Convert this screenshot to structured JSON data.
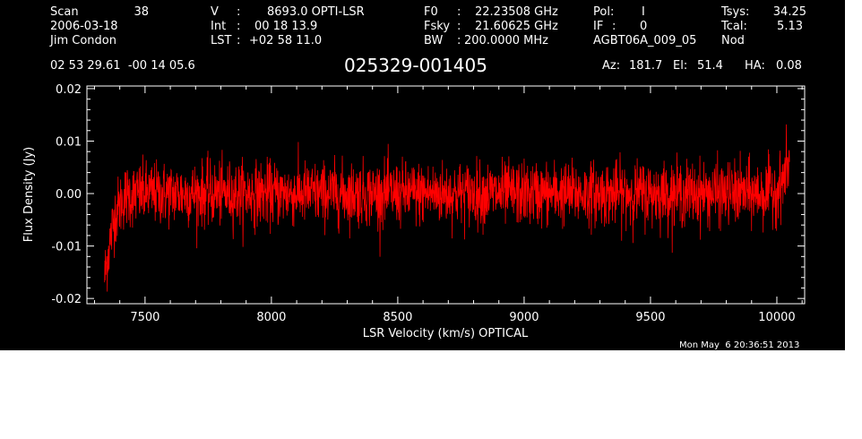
{
  "header": {
    "row1": [
      "Scan",
      "38",
      "V",
      ":",
      "8693.0 OPTI-LSR",
      "F0",
      ":",
      "22.23508 GHz",
      "Pol:",
      "I",
      "Tsys:",
      "34.25"
    ],
    "row2": [
      "2006-03-18",
      "Int",
      ":",
      "00 18 13.9",
      "Fsky",
      ":",
      "21.60625 GHz",
      "IF",
      ":",
      "0",
      "Tcal:",
      "5.13"
    ],
    "row3": [
      "Jim Condon",
      "LST",
      ":",
      "+02 58 11.0",
      "BW",
      ":",
      "200.0000 MHz",
      "AGBT06A_009_05",
      "Nod"
    ],
    "coords": "02 53 29.61  -00 14 05.6",
    "source": "025329-001405",
    "az_label": "Az:",
    "az_value": "181.7",
    "el_label": "El:",
    "el_value": "51.4",
    "ha_label": "HA:",
    "ha_value": "0.08"
  },
  "footer": {
    "timestamp": "Mon May  6 20:36:51 2013"
  },
  "colors": {
    "background": "#000000",
    "axes": "#ffffff",
    "trace": "#ff0000"
  },
  "chart_data": {
    "type": "line",
    "xlabel": "LSR Velocity (km/s) OPTICAL",
    "ylabel": "Flux Density (Jy)",
    "xlim": [
      7270,
      10110
    ],
    "ylim": [
      -0.021,
      0.0205
    ],
    "xticks": [
      7500,
      8000,
      8500,
      9000,
      9500,
      10000
    ],
    "xtick_labels": [
      "7500",
      "8000",
      "8500",
      "9000",
      "9500",
      "10000"
    ],
    "yticks": [
      -0.02,
      -0.01,
      0.0,
      0.01,
      0.02
    ],
    "ytick_labels": [
      "-0.02",
      "-0.01",
      "0.00",
      "0.01",
      "0.02"
    ],
    "series": [
      {
        "x_range": [
          7340,
          10050
        ],
        "noise_rms_jy": 0.003,
        "envelope": [
          {
            "x": 7340,
            "y": -0.016
          },
          {
            "x": 7355,
            "y": -0.011
          },
          {
            "x": 7380,
            "y": -0.004
          },
          {
            "x": 7420,
            "y": -0.0005
          },
          {
            "x": 7500,
            "y": 0.0
          },
          {
            "x": 9950,
            "y": 0.0
          },
          {
            "x": 10010,
            "y": 0.001
          },
          {
            "x": 10050,
            "y": 0.006
          }
        ]
      }
    ]
  }
}
